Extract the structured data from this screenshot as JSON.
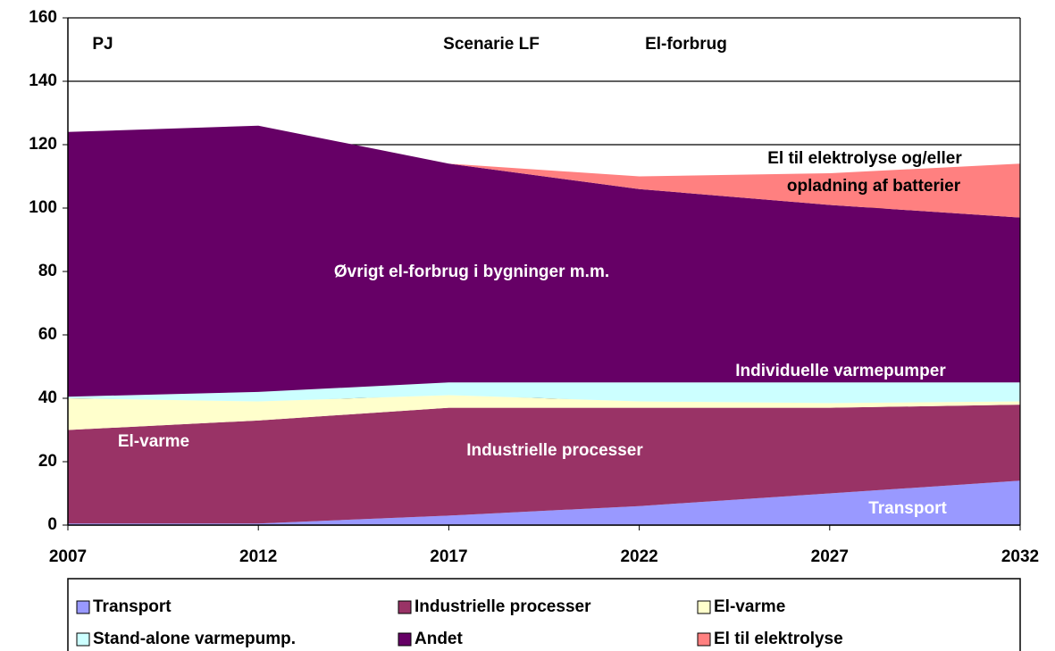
{
  "chart_data": {
    "type": "stacked-area",
    "annotations": [
      "PJ",
      "Scenarie LF",
      "El-forbrug",
      "El til elektrolyse og/eller",
      "opladning af batterier",
      "Øvrigt el-forbrug i bygninger m.m.",
      "Individuelle varmepumper",
      "El-varme",
      "Industrielle processer",
      "Transport"
    ],
    "x": [
      2007,
      2012,
      2017,
      2022,
      2027,
      2032
    ],
    "series": [
      {
        "name": "Transport",
        "color": "#9999ff",
        "values": [
          0.5,
          0.5,
          3,
          6,
          10,
          14
        ]
      },
      {
        "name": "Industrielle processer",
        "color": "#993366",
        "values": [
          29.5,
          32.5,
          34,
          31,
          27,
          24
        ]
      },
      {
        "name": "El-varme",
        "color": "#ffffcc",
        "values": [
          10,
          6,
          4,
          2,
          1.5,
          1
        ]
      },
      {
        "name": "Stand-alone varmepump.",
        "color": "#ccffff",
        "values": [
          0.5,
          3,
          4,
          6,
          6.5,
          6
        ]
      },
      {
        "name": "Andet",
        "color": "#660066",
        "values": [
          83.5,
          84,
          69,
          61,
          56,
          52
        ]
      },
      {
        "name": "El til elektrolyse",
        "color": "#ff8080",
        "values": [
          0,
          0,
          0,
          4,
          10,
          17
        ]
      }
    ],
    "xlim": [
      2007,
      2032
    ],
    "xticks": [
      2007,
      2012,
      2017,
      2022,
      2027,
      2032
    ],
    "ylim": [
      0,
      160
    ],
    "yticks": [
      0,
      20,
      40,
      60,
      80,
      100,
      120,
      140,
      160
    ],
    "grid": true
  }
}
